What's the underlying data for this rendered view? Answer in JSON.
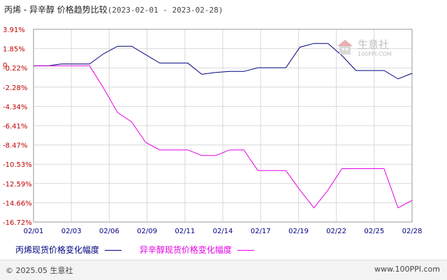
{
  "title": {
    "main": "丙烯 - 异辛醇 价格趋势比较",
    "range": "(2023-02-01 - 2023-02-28)"
  },
  "watermark": {
    "cn": "生意社",
    "en": "100PPI.COM"
  },
  "footer": {
    "left": "© 2025.05 生意社",
    "right": "www.100PPI.com"
  },
  "colors": {
    "series1": "#000080",
    "series2": "#e600e6",
    "tick_y": "#c00000",
    "tick_x": "#000080"
  },
  "chart_data": {
    "type": "line",
    "title": "丙烯 - 异辛醇 价格趋势比较",
    "xlabel": "",
    "ylabel": "",
    "y_ticks": [
      "3.91%",
      "1.85%",
      "-0.22%",
      "-2.28%",
      "-4.34%",
      "-6.41%",
      "-8.47%",
      "-10.53%",
      "-12.59%",
      "-14.66%",
      "-16.72%"
    ],
    "x_ticks": [
      "02/01",
      "02/03",
      "02/06",
      "02/09",
      "02/11",
      "02/14",
      "02/17",
      "02/19",
      "02/22",
      "02/25",
      "02/28"
    ],
    "ylim": [
      -16.72,
      3.91
    ],
    "xlim": [
      1,
      28
    ],
    "zero_label": "0",
    "grid": true,
    "legend": "bottom",
    "series": [
      {
        "name": "丙烯现货价格变化幅度",
        "points": [
          [
            1,
            0
          ],
          [
            2,
            0
          ],
          [
            3,
            0.2
          ],
          [
            4,
            0.2
          ],
          [
            5,
            0.2
          ],
          [
            6,
            1.3
          ],
          [
            7,
            2.1
          ],
          [
            8,
            2.1
          ],
          [
            9,
            1.2
          ],
          [
            10,
            0.3
          ],
          [
            11,
            0.3
          ],
          [
            12,
            0.3
          ],
          [
            13,
            -0.9
          ],
          [
            14,
            -0.7
          ],
          [
            15,
            -0.6
          ],
          [
            16,
            -0.6
          ],
          [
            17,
            -0.2
          ],
          [
            18,
            -0.2
          ],
          [
            19,
            -0.2
          ],
          [
            20,
            2.0
          ],
          [
            21,
            2.4
          ],
          [
            22,
            2.4
          ],
          [
            23,
            1.1
          ],
          [
            24,
            -0.5
          ],
          [
            25,
            -0.5
          ],
          [
            26,
            -0.5
          ],
          [
            27,
            -1.4
          ],
          [
            28,
            -0.8
          ]
        ]
      },
      {
        "name": "异辛醇现货价格变化幅度",
        "points": [
          [
            1,
            0
          ],
          [
            2,
            0
          ],
          [
            3,
            0
          ],
          [
            4,
            0
          ],
          [
            5,
            0
          ],
          [
            6,
            -2.4
          ],
          [
            7,
            -5.0
          ],
          [
            8,
            -6.0
          ],
          [
            9,
            -8.2
          ],
          [
            10,
            -9.0
          ],
          [
            11,
            -9.0
          ],
          [
            12,
            -9.0
          ],
          [
            13,
            -9.6
          ],
          [
            14,
            -9.6
          ],
          [
            15,
            -9.0
          ],
          [
            16,
            -9.0
          ],
          [
            17,
            -11.2
          ],
          [
            18,
            -11.2
          ],
          [
            19,
            -11.2
          ],
          [
            20,
            -13.3
          ],
          [
            21,
            -15.2
          ],
          [
            22,
            -13.3
          ],
          [
            23,
            -11.0
          ],
          [
            24,
            -11.0
          ],
          [
            25,
            -11.0
          ],
          [
            26,
            -11.0
          ],
          [
            27,
            -15.2
          ],
          [
            28,
            -14.4
          ]
        ]
      }
    ]
  }
}
